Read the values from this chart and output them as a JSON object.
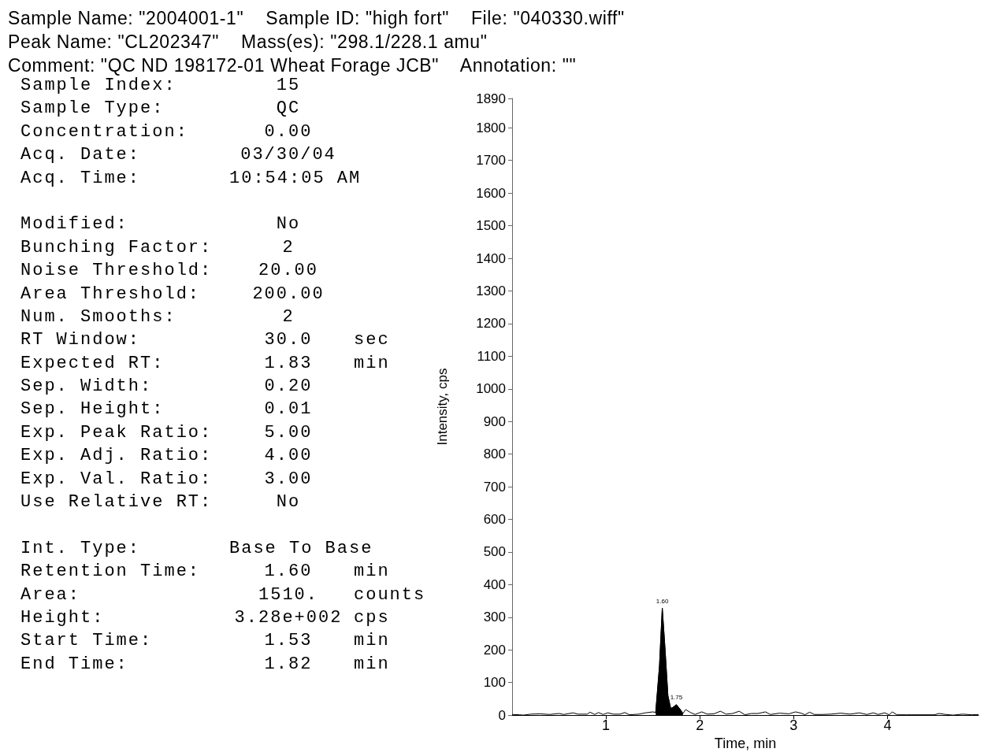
{
  "chart_data": {
    "type": "line",
    "title": "Sample Name: \"2004001-1\"    Sample ID: \"high fort\"    File: \"040330.wiff\"",
    "subtitle": "Peak Name: \"CL202347\"    Mass(es): \"298.1/228.1 amu\"",
    "xlabel": "Time, min",
    "ylabel": "Intensity, cps",
    "marker": "none",
    "xlim": [
      0,
      4.97
    ],
    "xticks": [
      1,
      2,
      3,
      4
    ],
    "ylim": [
      0,
      1890
    ],
    "yticks": [
      0,
      100,
      200,
      300,
      400,
      500,
      600,
      700,
      800,
      900,
      1000,
      1100,
      1200,
      1300,
      1400,
      1500,
      1600,
      1700,
      1800,
      1890
    ],
    "annotations": [
      "Comment: \"QC ND 198172-01 Wheat Forage JCB\"    Annotation: \"\"",
      "Sample Index:\t15",
      "Sample Type:\tQC",
      "Concentration:\t0.00",
      "Acq. Date:\t03/30/04",
      "Acq. Time:\t10:54:05 AM",
      "Modified:\tNo",
      "Bunching Factor:\t2",
      "Noise Threshold:\t20.00",
      "Area Threshold:\t200.00",
      "Num. Smooths:\t2",
      "RT Window:\t30.0\tsec",
      "Expected RT:\t1.83\tmin",
      "Sep. Width:\t0.20",
      "Sep. Height:\t0.01",
      "Exp. Peak Ratio:\t5.00",
      "Exp. Adj. Ratio:\t4.00",
      "Exp. Val. Ratio:\t3.00",
      "Use Relative RT:\tNo",
      "Int. Type:\tBase To Base",
      "Retention Time:\t1.60\tmin",
      "Area:\t1510.\tcounts",
      "Height:\t3.28e+002\tcps",
      "Start Time:\t1.53\tmin",
      "End Time:\t1.82\tmin",
      {
        "text": "1.60",
        "x": 1.6,
        "y": 328
      },
      {
        "text": "1.75",
        "x": 1.75,
        "y": 32
      }
    ],
    "series": [
      {
        "color": "#000000",
        "x": [
          0,
          0.08,
          0.12,
          0.2,
          0.3,
          0.4,
          0.5,
          0.55,
          0.65,
          0.7,
          0.8,
          0.83,
          0.88,
          0.92,
          0.97,
          1.02,
          1.08,
          1.15,
          1.2,
          1.25,
          1.35,
          1.42,
          1.5,
          1.53,
          1.57,
          1.6,
          1.63,
          1.66,
          1.69,
          1.72,
          1.75,
          1.79,
          1.82,
          1.85,
          1.9,
          1.95,
          2.02,
          2.08,
          2.15,
          2.22,
          2.28,
          2.35,
          2.42,
          2.48,
          2.55,
          2.62,
          2.7,
          2.75,
          2.85,
          2.95,
          3.02,
          3.08,
          3.12,
          3.17,
          3.22,
          3.3,
          3.4,
          3.5,
          3.6,
          3.7,
          3.78,
          3.85,
          3.9,
          3.97,
          4.02,
          4.05,
          4.1,
          4.2,
          4.5,
          4.55,
          4.62,
          4.7,
          4.8,
          4.9,
          4.97
        ],
        "values": [
          2,
          1,
          0,
          3,
          4,
          2,
          5,
          2,
          7,
          3,
          3,
          9,
          2,
          8,
          2,
          7,
          3,
          3,
          8,
          1,
          3,
          7,
          10,
          8,
          150,
          328,
          200,
          60,
          20,
          25,
          32,
          18,
          5,
          17,
          8,
          2,
          10,
          3,
          4,
          12,
          3,
          5,
          12,
          1,
          5,
          5,
          10,
          2,
          6,
          4,
          10,
          6,
          1,
          9,
          2,
          2,
          3,
          6,
          3,
          7,
          2,
          7,
          2,
          7,
          1,
          10,
          1,
          1,
          1,
          5,
          2,
          0,
          3,
          1,
          2
        ]
      },
      {
        "type": "area",
        "color": "#000000",
        "x": [
          1.53,
          1.57,
          1.6,
          1.63,
          1.66,
          1.69,
          1.72,
          1.75,
          1.79,
          1.82
        ],
        "values": [
          8,
          150,
          328,
          200,
          60,
          20,
          25,
          32,
          18,
          5
        ]
      }
    ]
  }
}
